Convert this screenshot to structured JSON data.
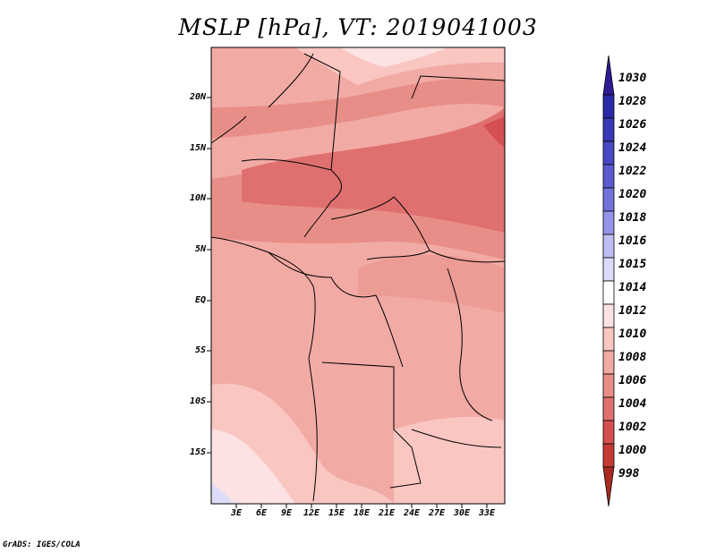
{
  "title": "MSLP [hPa], VT: 2019041003",
  "credit": "GrADS: IGES/COLA",
  "lat_labels": [
    "20N",
    "15N",
    "10N",
    "5N",
    "EQ",
    "5S",
    "10S",
    "15S"
  ],
  "lon_labels": [
    "3E",
    "6E",
    "9E",
    "12E",
    "15E",
    "18E",
    "21E",
    "24E",
    "27E",
    "30E",
    "33E"
  ],
  "colorbar": {
    "levels": [
      {
        "label": "1030",
        "color": "#2e1b96"
      },
      {
        "label": "1028",
        "color": "#2a2aa8"
      },
      {
        "label": "1026",
        "color": "#3838b6"
      },
      {
        "label": "1024",
        "color": "#4848c2"
      },
      {
        "label": "1022",
        "color": "#5c5cd0"
      },
      {
        "label": "1020",
        "color": "#7272dc"
      },
      {
        "label": "1018",
        "color": "#9494e8"
      },
      {
        "label": "1016",
        "color": "#bebef2"
      },
      {
        "label": "1015",
        "color": "#dcdcf8"
      },
      {
        "label": "1014",
        "color": "#ffffff"
      },
      {
        "label": "1012",
        "color": "#fce2e2"
      },
      {
        "label": "1010",
        "color": "#f9c6c2"
      },
      {
        "label": "1008",
        "color": "#f2aaa4"
      },
      {
        "label": "1006",
        "color": "#e88e88"
      },
      {
        "label": "1004",
        "color": "#e07070"
      },
      {
        "label": "1002",
        "color": "#d45050"
      },
      {
        "label": "1000",
        "color": "#c43a34"
      },
      {
        "label": "998",
        "color": "#a82a22"
      }
    ]
  }
}
